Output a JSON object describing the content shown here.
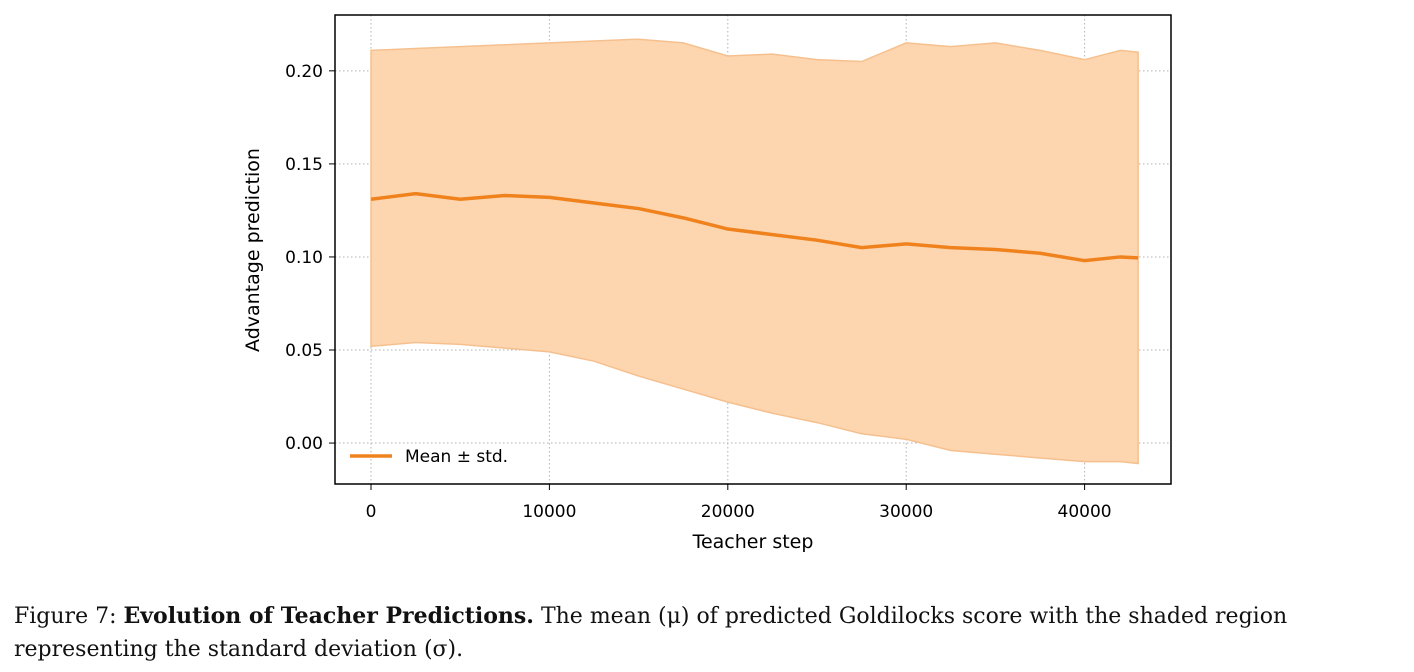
{
  "chart_data": {
    "type": "line",
    "title": "",
    "xlabel": "Teacher step",
    "ylabel": "Advantage prediction",
    "xlim": [
      -2018,
      44843
    ],
    "ylim": [
      -0.022,
      0.23
    ],
    "xticks": [
      0,
      10000,
      20000,
      30000,
      40000
    ],
    "xtick_labels": [
      "0",
      "10000",
      "20000",
      "30000",
      "40000"
    ],
    "yticks": [
      0.0,
      0.05,
      0.1,
      0.15,
      0.2
    ],
    "ytick_labels": [
      "0.00",
      "0.05",
      "0.10",
      "0.15",
      "0.20"
    ],
    "grid": true,
    "legend_position": "lower-left",
    "series": [
      {
        "name": "Mean ± std.",
        "color": "#f0821e",
        "band_color": "#fdd6b0",
        "x": [
          0,
          2500,
          5000,
          7500,
          10000,
          12500,
          15000,
          17500,
          20000,
          22500,
          25000,
          27500,
          30000,
          32500,
          35000,
          37500,
          40000,
          42000,
          43000
        ],
        "mean": [
          0.131,
          0.134,
          0.131,
          0.133,
          0.132,
          0.129,
          0.126,
          0.121,
          0.115,
          0.112,
          0.109,
          0.105,
          0.107,
          0.105,
          0.104,
          0.102,
          0.098,
          0.1,
          0.0995
        ],
        "upper": [
          0.211,
          0.212,
          0.213,
          0.214,
          0.215,
          0.216,
          0.217,
          0.215,
          0.208,
          0.209,
          0.206,
          0.205,
          0.215,
          0.213,
          0.215,
          0.211,
          0.206,
          0.211,
          0.21
        ],
        "lower": [
          0.052,
          0.054,
          0.053,
          0.051,
          0.049,
          0.044,
          0.036,
          0.029,
          0.022,
          0.016,
          0.011,
          0.005,
          0.002,
          -0.004,
          -0.006,
          -0.008,
          -0.01,
          -0.01,
          -0.011
        ]
      }
    ]
  },
  "caption": {
    "label": "Figure 7:",
    "title": "Evolution of Teacher Predictions.",
    "text": "The mean (μ) of predicted Goldilocks score with the shaded region representing the standard deviation (σ)."
  }
}
